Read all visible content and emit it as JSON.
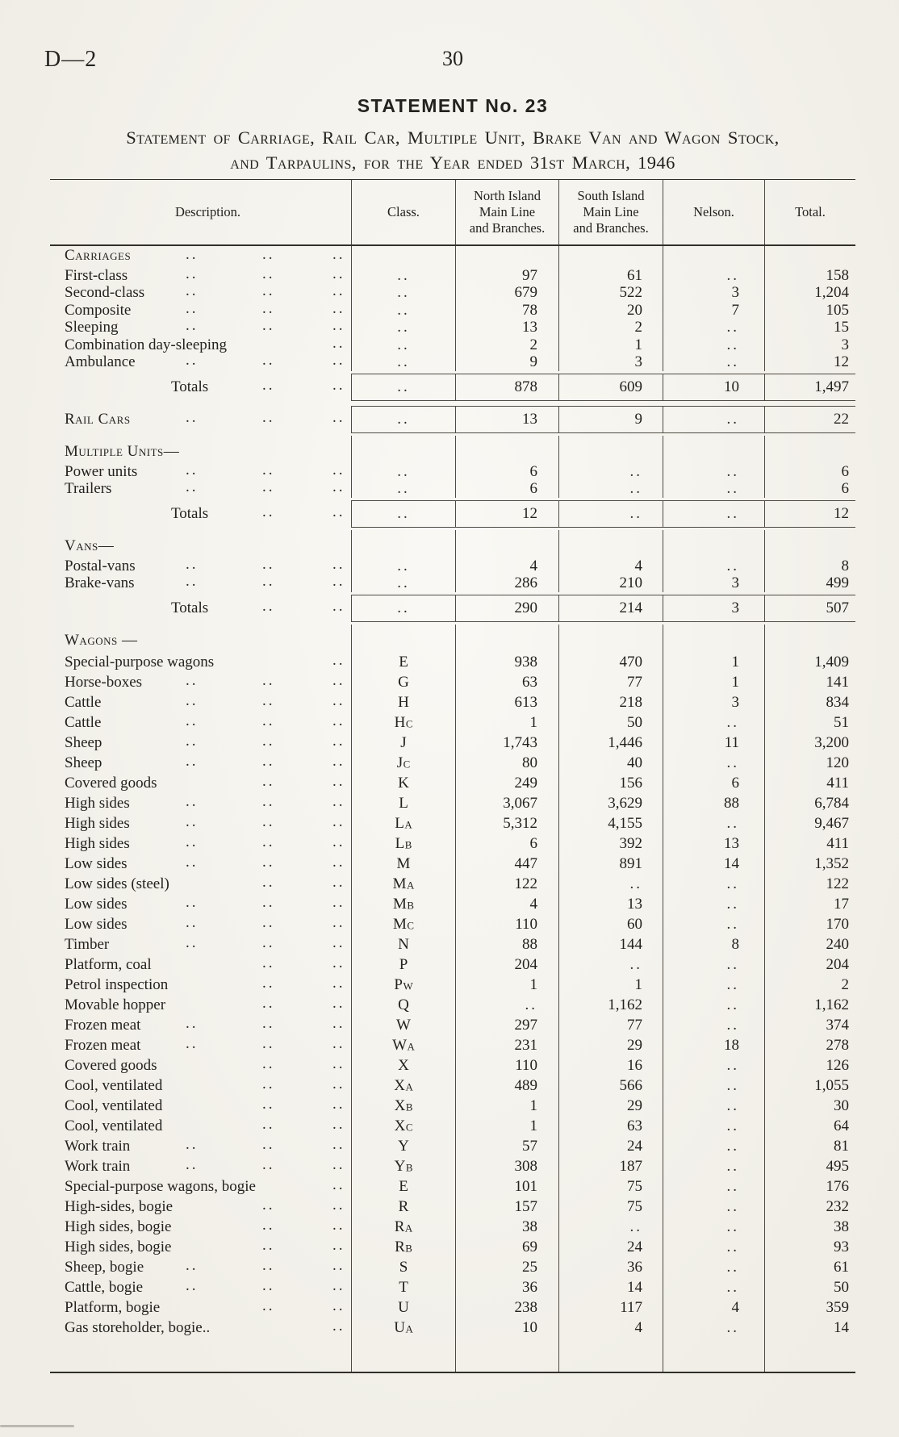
{
  "header": {
    "doc_ref": "D—2",
    "page_number": "30"
  },
  "title": {
    "statement_label": "STATEMENT  No. 23",
    "line1": "Statement of Carriage, Rail Car, Multiple Unit, Brake Van and Wagon Stock,",
    "line2": "and Tarpaulins, for the Year ended 31st March, 1946"
  },
  "table": {
    "columns": [
      "Description.",
      "Class.",
      "North Island\nMain Line\nand Branches.",
      "South Island\nMain Line\nand Branches.",
      "Nelson.",
      "Total."
    ],
    "rows": [
      {
        "kind": "section",
        "label": "Carriages",
        "sc": true,
        "dots": [
          1,
          2,
          3
        ]
      },
      {
        "kind": "item",
        "label": "First-class",
        "dots": [
          1,
          2,
          3
        ],
        "cls": "..",
        "ni": "97",
        "si": "61",
        "nel": "..",
        "tot": "158"
      },
      {
        "kind": "item",
        "label": "Second-class",
        "dots": [
          1,
          2,
          3
        ],
        "cls": "..",
        "ni": "679",
        "si": "522",
        "nel": "3",
        "tot": "1,204"
      },
      {
        "kind": "item",
        "label": "Composite",
        "dots": [
          1,
          2,
          3
        ],
        "cls": "..",
        "ni": "78",
        "si": "20",
        "nel": "7",
        "tot": "105"
      },
      {
        "kind": "item",
        "label": "Sleeping",
        "dots": [
          1,
          2,
          3
        ],
        "cls": "..",
        "ni": "13",
        "si": "2",
        "nel": "..",
        "tot": "15"
      },
      {
        "kind": "item",
        "label": "Combination day-sleeping",
        "dots": [
          3
        ],
        "cls": "..",
        "ni": "2",
        "si": "1",
        "nel": "..",
        "tot": "3"
      },
      {
        "kind": "item",
        "label": "Ambulance",
        "dots": [
          1,
          2,
          3
        ],
        "cls": "..",
        "ni": "9",
        "si": "3",
        "nel": "..",
        "tot": "12"
      },
      {
        "kind": "totals",
        "label": "Totals",
        "dots": [
          2,
          3
        ],
        "cls": "..",
        "ni": "878",
        "si": "609",
        "nel": "10",
        "tot": "1,497"
      },
      {
        "kind": "item",
        "ruled": true,
        "sc": true,
        "label": "Rail Cars",
        "dots": [
          1,
          2,
          3
        ],
        "cls": "..",
        "ni": "13",
        "si": "9",
        "nel": "..",
        "tot": "22"
      },
      {
        "kind": "section",
        "label": "Multiple Units—",
        "sc": true
      },
      {
        "kind": "item",
        "label": "Power units",
        "dots": [
          1,
          2,
          3
        ],
        "cls": "..",
        "ni": "6",
        "si": "..",
        "nel": "..",
        "tot": "6"
      },
      {
        "kind": "item",
        "label": "Trailers",
        "dots": [
          1,
          2,
          3
        ],
        "cls": "..",
        "ni": "6",
        "si": "..",
        "nel": "..",
        "tot": "6"
      },
      {
        "kind": "totals",
        "label": "Totals",
        "dots": [
          2,
          3
        ],
        "cls": "..",
        "ni": "12",
        "si": "..",
        "nel": "..",
        "tot": "12"
      },
      {
        "kind": "section",
        "label": "Vans—",
        "sc": true
      },
      {
        "kind": "item",
        "label": "Postal-vans",
        "dots": [
          1,
          2,
          3
        ],
        "cls": "..",
        "ni": "4",
        "si": "4",
        "nel": "..",
        "tot": "8"
      },
      {
        "kind": "item",
        "label": "Brake-vans",
        "dots": [
          1,
          2,
          3
        ],
        "cls": "..",
        "ni": "286",
        "si": "210",
        "nel": "3",
        "tot": "499"
      },
      {
        "kind": "totals",
        "label": "Totals",
        "dots": [
          2,
          3
        ],
        "cls": "..",
        "ni": "290",
        "si": "214",
        "nel": "3",
        "tot": "507"
      },
      {
        "kind": "section",
        "label": "Wagons —",
        "sc": true
      },
      {
        "kind": "item",
        "label": "Special-purpose wagons",
        "dots": [
          3
        ],
        "cls": "E",
        "ni": "938",
        "si": "470",
        "nel": "1",
        "tot": "1,409"
      },
      {
        "kind": "item",
        "label": "Horse-boxes",
        "dots": [
          1,
          2,
          3
        ],
        "cls": "G",
        "ni": "63",
        "si": "77",
        "nel": "1",
        "tot": "141"
      },
      {
        "kind": "item",
        "label": "Cattle",
        "dots": [
          1,
          2,
          3
        ],
        "cls": "H",
        "ni": "613",
        "si": "218",
        "nel": "3",
        "tot": "834"
      },
      {
        "kind": "item",
        "label": "Cattle",
        "dots": [
          1,
          2,
          3
        ],
        "cls": "Hc",
        "ni": "1",
        "si": "50",
        "nel": "..",
        "tot": "51"
      },
      {
        "kind": "item",
        "label": "Sheep",
        "dots": [
          1,
          2,
          3
        ],
        "cls": "J",
        "ni": "1,743",
        "si": "1,446",
        "nel": "11",
        "tot": "3,200"
      },
      {
        "kind": "item",
        "label": "Sheep",
        "dots": [
          1,
          2,
          3
        ],
        "cls": "Jc",
        "ni": "80",
        "si": "40",
        "nel": "..",
        "tot": "120"
      },
      {
        "kind": "item",
        "label": "Covered goods",
        "dots": [
          2,
          3
        ],
        "cls": "K",
        "ni": "249",
        "si": "156",
        "nel": "6",
        "tot": "411"
      },
      {
        "kind": "item",
        "label": "High sides",
        "dots": [
          1,
          2,
          3
        ],
        "cls": "L",
        "ni": "3,067",
        "si": "3,629",
        "nel": "88",
        "tot": "6,784"
      },
      {
        "kind": "item",
        "label": "High sides",
        "dots": [
          1,
          2,
          3
        ],
        "cls": "La",
        "ni": "5,312",
        "si": "4,155",
        "nel": "..",
        "tot": "9,467"
      },
      {
        "kind": "item",
        "label": "High sides",
        "dots": [
          1,
          2,
          3
        ],
        "cls": "Lb",
        "ni": "6",
        "si": "392",
        "nel": "13",
        "tot": "411"
      },
      {
        "kind": "item",
        "label": "Low sides",
        "dots": [
          1,
          2,
          3
        ],
        "cls": "M",
        "ni": "447",
        "si": "891",
        "nel": "14",
        "tot": "1,352"
      },
      {
        "kind": "item",
        "label": "Low sides (steel)",
        "dots": [
          2,
          3
        ],
        "cls": "Ma",
        "ni": "122",
        "si": "..",
        "nel": "..",
        "tot": "122"
      },
      {
        "kind": "item",
        "label": "Low sides",
        "dots": [
          1,
          2,
          3
        ],
        "cls": "Mb",
        "ni": "4",
        "si": "13",
        "nel": "..",
        "tot": "17"
      },
      {
        "kind": "item",
        "label": "Low sides",
        "dots": [
          1,
          2,
          3
        ],
        "cls": "Mc",
        "ni": "110",
        "si": "60",
        "nel": "..",
        "tot": "170"
      },
      {
        "kind": "item",
        "label": "Timber",
        "dots": [
          1,
          2,
          3
        ],
        "cls": "N",
        "ni": "88",
        "si": "144",
        "nel": "8",
        "tot": "240"
      },
      {
        "kind": "item",
        "label": "Platform, coal",
        "dots": [
          2,
          3
        ],
        "cls": "P",
        "ni": "204",
        "si": "..",
        "nel": "..",
        "tot": "204"
      },
      {
        "kind": "item",
        "label": "Petrol inspection",
        "dots": [
          2,
          3
        ],
        "cls": "Pw",
        "ni": "1",
        "si": "1",
        "nel": "..",
        "tot": "2"
      },
      {
        "kind": "item",
        "label": "Movable hopper",
        "dots": [
          2,
          3
        ],
        "cls": "Q",
        "ni": "..",
        "si": "1,162",
        "nel": "..",
        "tot": "1,162"
      },
      {
        "kind": "item",
        "label": "Frozen meat",
        "dots": [
          1,
          2,
          3
        ],
        "cls": "W",
        "ni": "297",
        "si": "77",
        "nel": "..",
        "tot": "374"
      },
      {
        "kind": "item",
        "label": "Frozen meat",
        "dots": [
          1,
          2,
          3
        ],
        "cls": "Wa",
        "ni": "231",
        "si": "29",
        "nel": "18",
        "tot": "278"
      },
      {
        "kind": "item",
        "label": "Covered goods",
        "dots": [
          2,
          3
        ],
        "cls": "X",
        "ni": "110",
        "si": "16",
        "nel": "..",
        "tot": "126"
      },
      {
        "kind": "item",
        "label": "Cool, ventilated",
        "dots": [
          2,
          3
        ],
        "cls": "Xa",
        "ni": "489",
        "si": "566",
        "nel": "..",
        "tot": "1,055"
      },
      {
        "kind": "item",
        "label": "Cool, ventilated",
        "dots": [
          2,
          3
        ],
        "cls": "Xb",
        "ni": "1",
        "si": "29",
        "nel": "..",
        "tot": "30"
      },
      {
        "kind": "item",
        "label": "Cool, ventilated",
        "dots": [
          2,
          3
        ],
        "cls": "Xc",
        "ni": "1",
        "si": "63",
        "nel": "..",
        "tot": "64"
      },
      {
        "kind": "item",
        "label": "Work train",
        "dots": [
          1,
          2,
          3
        ],
        "cls": "Y",
        "ni": "57",
        "si": "24",
        "nel": "..",
        "tot": "81"
      },
      {
        "kind": "item",
        "label": "Work train",
        "dots": [
          1,
          2,
          3
        ],
        "cls": "Yb",
        "ni": "308",
        "si": "187",
        "nel": "..",
        "tot": "495"
      },
      {
        "kind": "item",
        "label": "Special-purpose wagons, bogie",
        "dots": [
          3
        ],
        "cls": "E",
        "ni": "101",
        "si": "75",
        "nel": "..",
        "tot": "176"
      },
      {
        "kind": "item",
        "label": "High-sides, bogie",
        "dots": [
          2,
          3
        ],
        "cls": "R",
        "ni": "157",
        "si": "75",
        "nel": "..",
        "tot": "232"
      },
      {
        "kind": "item",
        "label": "High sides, bogie",
        "dots": [
          2,
          3
        ],
        "cls": "Ra",
        "ni": "38",
        "si": "..",
        "nel": "..",
        "tot": "38"
      },
      {
        "kind": "item",
        "label": "High sides, bogie",
        "dots": [
          2,
          3
        ],
        "cls": "Rb",
        "ni": "69",
        "si": "24",
        "nel": "..",
        "tot": "93"
      },
      {
        "kind": "item",
        "label": "Sheep, bogie",
        "dots": [
          1,
          2,
          3
        ],
        "cls": "S",
        "ni": "25",
        "si": "36",
        "nel": "..",
        "tot": "61"
      },
      {
        "kind": "item",
        "label": "Cattle, bogie",
        "dots": [
          1,
          2,
          3
        ],
        "cls": "T",
        "ni": "36",
        "si": "14",
        "nel": "..",
        "tot": "50"
      },
      {
        "kind": "item",
        "label": "Platform, bogie",
        "dots": [
          2,
          3
        ],
        "cls": "U",
        "ni": "238",
        "si": "117",
        "nel": "4",
        "tot": "359"
      },
      {
        "kind": "item",
        "label": "Gas storeholder, bogie..",
        "dots": [
          3
        ],
        "cls": "Ua",
        "ni": "10",
        "si": "4",
        "nel": "..",
        "tot": "14"
      },
      {
        "kind": "spacer"
      }
    ]
  }
}
